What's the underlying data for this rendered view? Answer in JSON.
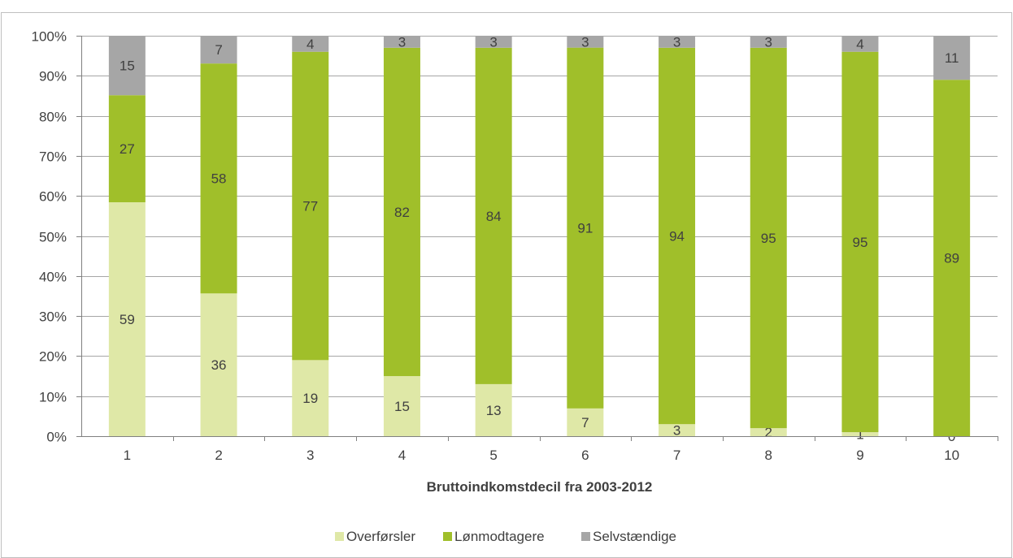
{
  "chart_data": {
    "type": "bar",
    "stacked": true,
    "categories": [
      "1",
      "2",
      "3",
      "4",
      "5",
      "6",
      "7",
      "8",
      "9",
      "10"
    ],
    "series": [
      {
        "name": "Overførsler",
        "color": "#dfe8a7",
        "values": [
          59,
          36,
          19,
          15,
          13,
          7,
          3,
          2,
          1,
          0
        ]
      },
      {
        "name": "Lønmodtagere",
        "color": "#a0bf2a",
        "values": [
          27,
          58,
          77,
          82,
          84,
          91,
          94,
          95,
          95,
          89
        ]
      },
      {
        "name": "Selvstændige",
        "color": "#a6a6a6",
        "values": [
          15,
          7,
          4,
          3,
          3,
          3,
          3,
          3,
          4,
          11
        ]
      }
    ],
    "title": "",
    "xlabel": "Bruttoindkomstdecil fra 2003-2012",
    "ylabel": "",
    "ylim": [
      0,
      100
    ],
    "yticks": [
      "0%",
      "10%",
      "20%",
      "30%",
      "40%",
      "50%",
      "60%",
      "70%",
      "80%",
      "90%",
      "100%"
    ],
    "grid": true,
    "legend_position": "bottom"
  }
}
